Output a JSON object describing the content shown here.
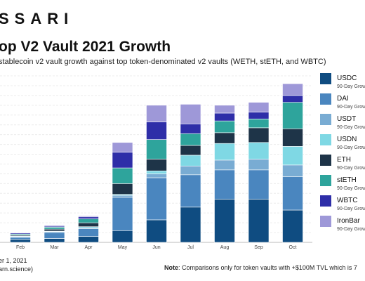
{
  "header": {
    "logo": "SSARI",
    "title": "op V2 Vault 2021 Growth",
    "subtitle": "stablecoin v2 vault growth against top token-denominated v2 vaults (WETH, stETH, and WBTC)"
  },
  "footer": {
    "date_line": "er 1, 2021",
    "source_line": "arn.science)",
    "note_label": "Note",
    "note_text": ": Comparisons only for token vaults with +$100M TVL which is 7"
  },
  "chart_data": {
    "type": "bar",
    "stacked": true,
    "categories": [
      "Feb",
      "Mar",
      "Apr",
      "May",
      "Jun",
      "Jul",
      "Aug",
      "Sep",
      "Oct"
    ],
    "series": [
      {
        "name": "USDC",
        "sub": "90-Day Grow",
        "color": "#0f4c81",
        "values": [
          3,
          4,
          6,
          12,
          23,
          36,
          44,
          44,
          33
        ]
      },
      {
        "name": "DAI",
        "sub": "90-Day Grow",
        "color": "#4a86bf",
        "values": [
          2,
          6,
          8,
          34,
          43,
          33,
          30,
          30,
          34
        ]
      },
      {
        "name": "USDT",
        "sub": "90-Day Grow",
        "color": "#79acd3",
        "values": [
          1,
          1,
          1,
          2,
          4,
          9,
          10,
          11,
          12
        ]
      },
      {
        "name": "USDN",
        "sub": "90-Day Grow",
        "color": "#7fd8e4",
        "values": [
          0.5,
          0.5,
          1,
          1,
          3,
          11,
          17,
          17,
          19
        ]
      },
      {
        "name": "ETH",
        "sub": "90-Day Grow",
        "color": "#1e3448",
        "values": [
          1,
          2,
          4,
          11,
          12,
          10,
          11,
          15,
          18
        ]
      },
      {
        "name": "stETH",
        "sub": "90-Day Grow",
        "color": "#2ea49c",
        "values": [
          1,
          2,
          4,
          16,
          20,
          12,
          12,
          9,
          27
        ]
      },
      {
        "name": "WBTC",
        "sub": "90-Day Grow",
        "color": "#2e2ea8",
        "values": [
          1,
          1,
          2,
          16,
          18,
          10,
          8,
          7,
          7
        ]
      },
      {
        "name": "IronBar",
        "sub": "90-Day Grow",
        "color": "#9e98d8",
        "values": [
          0.5,
          1,
          1,
          10,
          17,
          20,
          8,
          10,
          12
        ]
      }
    ],
    "ylim": [
      0,
      170
    ],
    "grid": true,
    "legend_position": "right"
  }
}
